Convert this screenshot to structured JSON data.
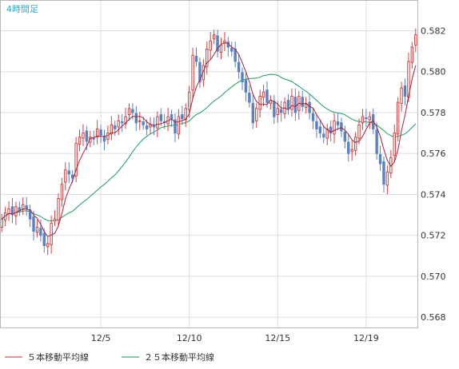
{
  "chart_data": {
    "type": "candlestick",
    "title": "4時間足",
    "ylim": [
      0.5675,
      0.5835
    ],
    "y_ticks": [
      "0.568",
      "0.570",
      "0.572",
      "0.574",
      "0.576",
      "0.578",
      "0.580",
      "0.582"
    ],
    "x_ticks": [
      {
        "index": 28,
        "label": "12/5"
      },
      {
        "index": 53,
        "label": "12/10"
      },
      {
        "index": 78,
        "label": "12/15"
      },
      {
        "index": 103,
        "label": "12/19"
      }
    ],
    "grid": true,
    "legend_placement": "bottom-left",
    "colors": {
      "up": "#cc4444",
      "down": "#5a82c3",
      "ma5": "#a8203a",
      "ma25": "#17a05a",
      "grid": "#dddddd",
      "title": "#33a7cc"
    },
    "legend": [
      {
        "label": "５本移動平均線",
        "color": "#c03040"
      },
      {
        "label": "２５本移動平均線",
        "color": "#109050"
      }
    ],
    "closes": [
      0.5728,
      0.5731,
      0.5733,
      0.573,
      0.5734,
      0.5732,
      0.5735,
      0.5733,
      0.5728,
      0.5722,
      0.5724,
      0.572,
      0.5715,
      0.5716,
      0.5726,
      0.5728,
      0.5738,
      0.5745,
      0.5752,
      0.575,
      0.5748,
      0.5765,
      0.5768,
      0.577,
      0.5766,
      0.5768,
      0.5767,
      0.5772,
      0.5769,
      0.5766,
      0.577,
      0.5774,
      0.5772,
      0.5776,
      0.5775,
      0.5778,
      0.5782,
      0.578,
      0.5775,
      0.5776,
      0.5774,
      0.5772,
      0.5774,
      0.5773,
      0.5778,
      0.5776,
      0.5775,
      0.5778,
      0.5777,
      0.577,
      0.5778,
      0.5777,
      0.5782,
      0.579,
      0.5808,
      0.5805,
      0.5795,
      0.5803,
      0.5811,
      0.5815,
      0.5818,
      0.581,
      0.5813,
      0.5815,
      0.5812,
      0.581,
      0.5805,
      0.58,
      0.5795,
      0.579,
      0.5785,
      0.5775,
      0.5782,
      0.5788,
      0.579,
      0.5785,
      0.5786,
      0.5778,
      0.5782,
      0.578,
      0.5785,
      0.5782,
      0.5788,
      0.578,
      0.5788,
      0.5783,
      0.5784,
      0.578,
      0.5776,
      0.5772,
      0.577,
      0.5768,
      0.5772,
      0.577,
      0.5776,
      0.5774,
      0.5771,
      0.5766,
      0.576,
      0.5762,
      0.5768,
      0.5774,
      0.5778,
      0.5777,
      0.5778,
      0.5772,
      0.576,
      0.5755,
      0.5745,
      0.5751,
      0.5758,
      0.577,
      0.5785,
      0.5792,
      0.5788,
      0.5805,
      0.5812,
      0.5818
    ]
  },
  "legend": {
    "ma5_label": "５本移動平均線",
    "ma25_label": "２５本移動平均線"
  }
}
